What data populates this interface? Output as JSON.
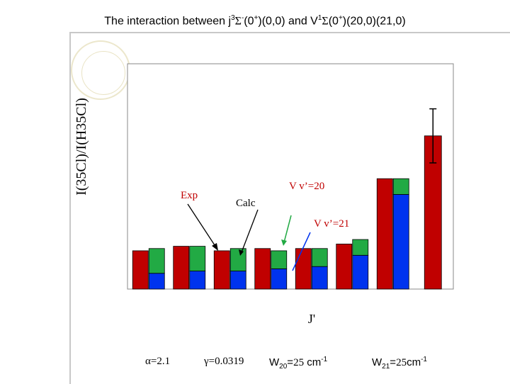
{
  "header": {
    "title_prefix": "The interaction between j",
    "title_sup1": "3",
    "title_sym1": "Σ",
    "title_sup2": "-",
    "title_mid1": "(0",
    "title_sup3": "+",
    "title_mid2": ")(0,0) and V",
    "title_sup4": "1",
    "title_sym2": "Σ",
    "title_mid3": "(0",
    "title_sup5": "+",
    "title_suffix": ")(20,0)(21,0)"
  },
  "chart_data": {
    "type": "bar",
    "title": "",
    "xlabel": "J'",
    "ylabel": "I(35Cl)/I(H35Cl)",
    "ylim": [
      0,
      100
    ],
    "grid": false,
    "x_tick_labels": false,
    "groups": [
      {
        "exp": 17,
        "calc_total": 18,
        "calc_lower": 7
      },
      {
        "exp": 19,
        "calc_total": 19,
        "calc_lower": 8
      },
      {
        "exp": 17,
        "calc_total": 18,
        "calc_lower": 8
      },
      {
        "exp": 18,
        "calc_total": 17,
        "calc_lower": 9
      },
      {
        "exp": 18,
        "calc_total": 18,
        "calc_lower": 10
      },
      {
        "exp": 20,
        "calc_total": 22,
        "calc_lower": 15
      },
      {
        "exp": 49,
        "calc_total": 49,
        "calc_lower": 42
      },
      {
        "exp": 68,
        "calc_total": null,
        "calc_lower": null,
        "error": 12
      }
    ],
    "series": [
      {
        "name": "Exp",
        "color": "#c00000"
      },
      {
        "name": "V v’=20",
        "color": "#22aa44"
      },
      {
        "name": "V v’=21",
        "color": "#0033ee"
      }
    ],
    "annotations": [
      {
        "text": "Exp",
        "color": "#c00000"
      },
      {
        "text": "Calc",
        "color": "#000000"
      },
      {
        "text": "V v’=20",
        "color": "#c00000"
      },
      {
        "text": "V v’=21",
        "color": "#c00000"
      }
    ]
  },
  "params": {
    "alpha_sym": "α",
    "alpha_val": "=2.1",
    "gamma_sym": "γ",
    "gamma_val": "=0.0319",
    "w20_base": "W",
    "w20_sub": "20",
    "w20_eq": "=",
    "w20_num": "25",
    "w20_unit": " cm",
    "w20_exp": "-1",
    "w21_base": "W",
    "w21_sub": "21",
    "w21_eq": "=",
    "w21_num": "25",
    "w21_unit": "cm",
    "w21_exp": "-1"
  }
}
